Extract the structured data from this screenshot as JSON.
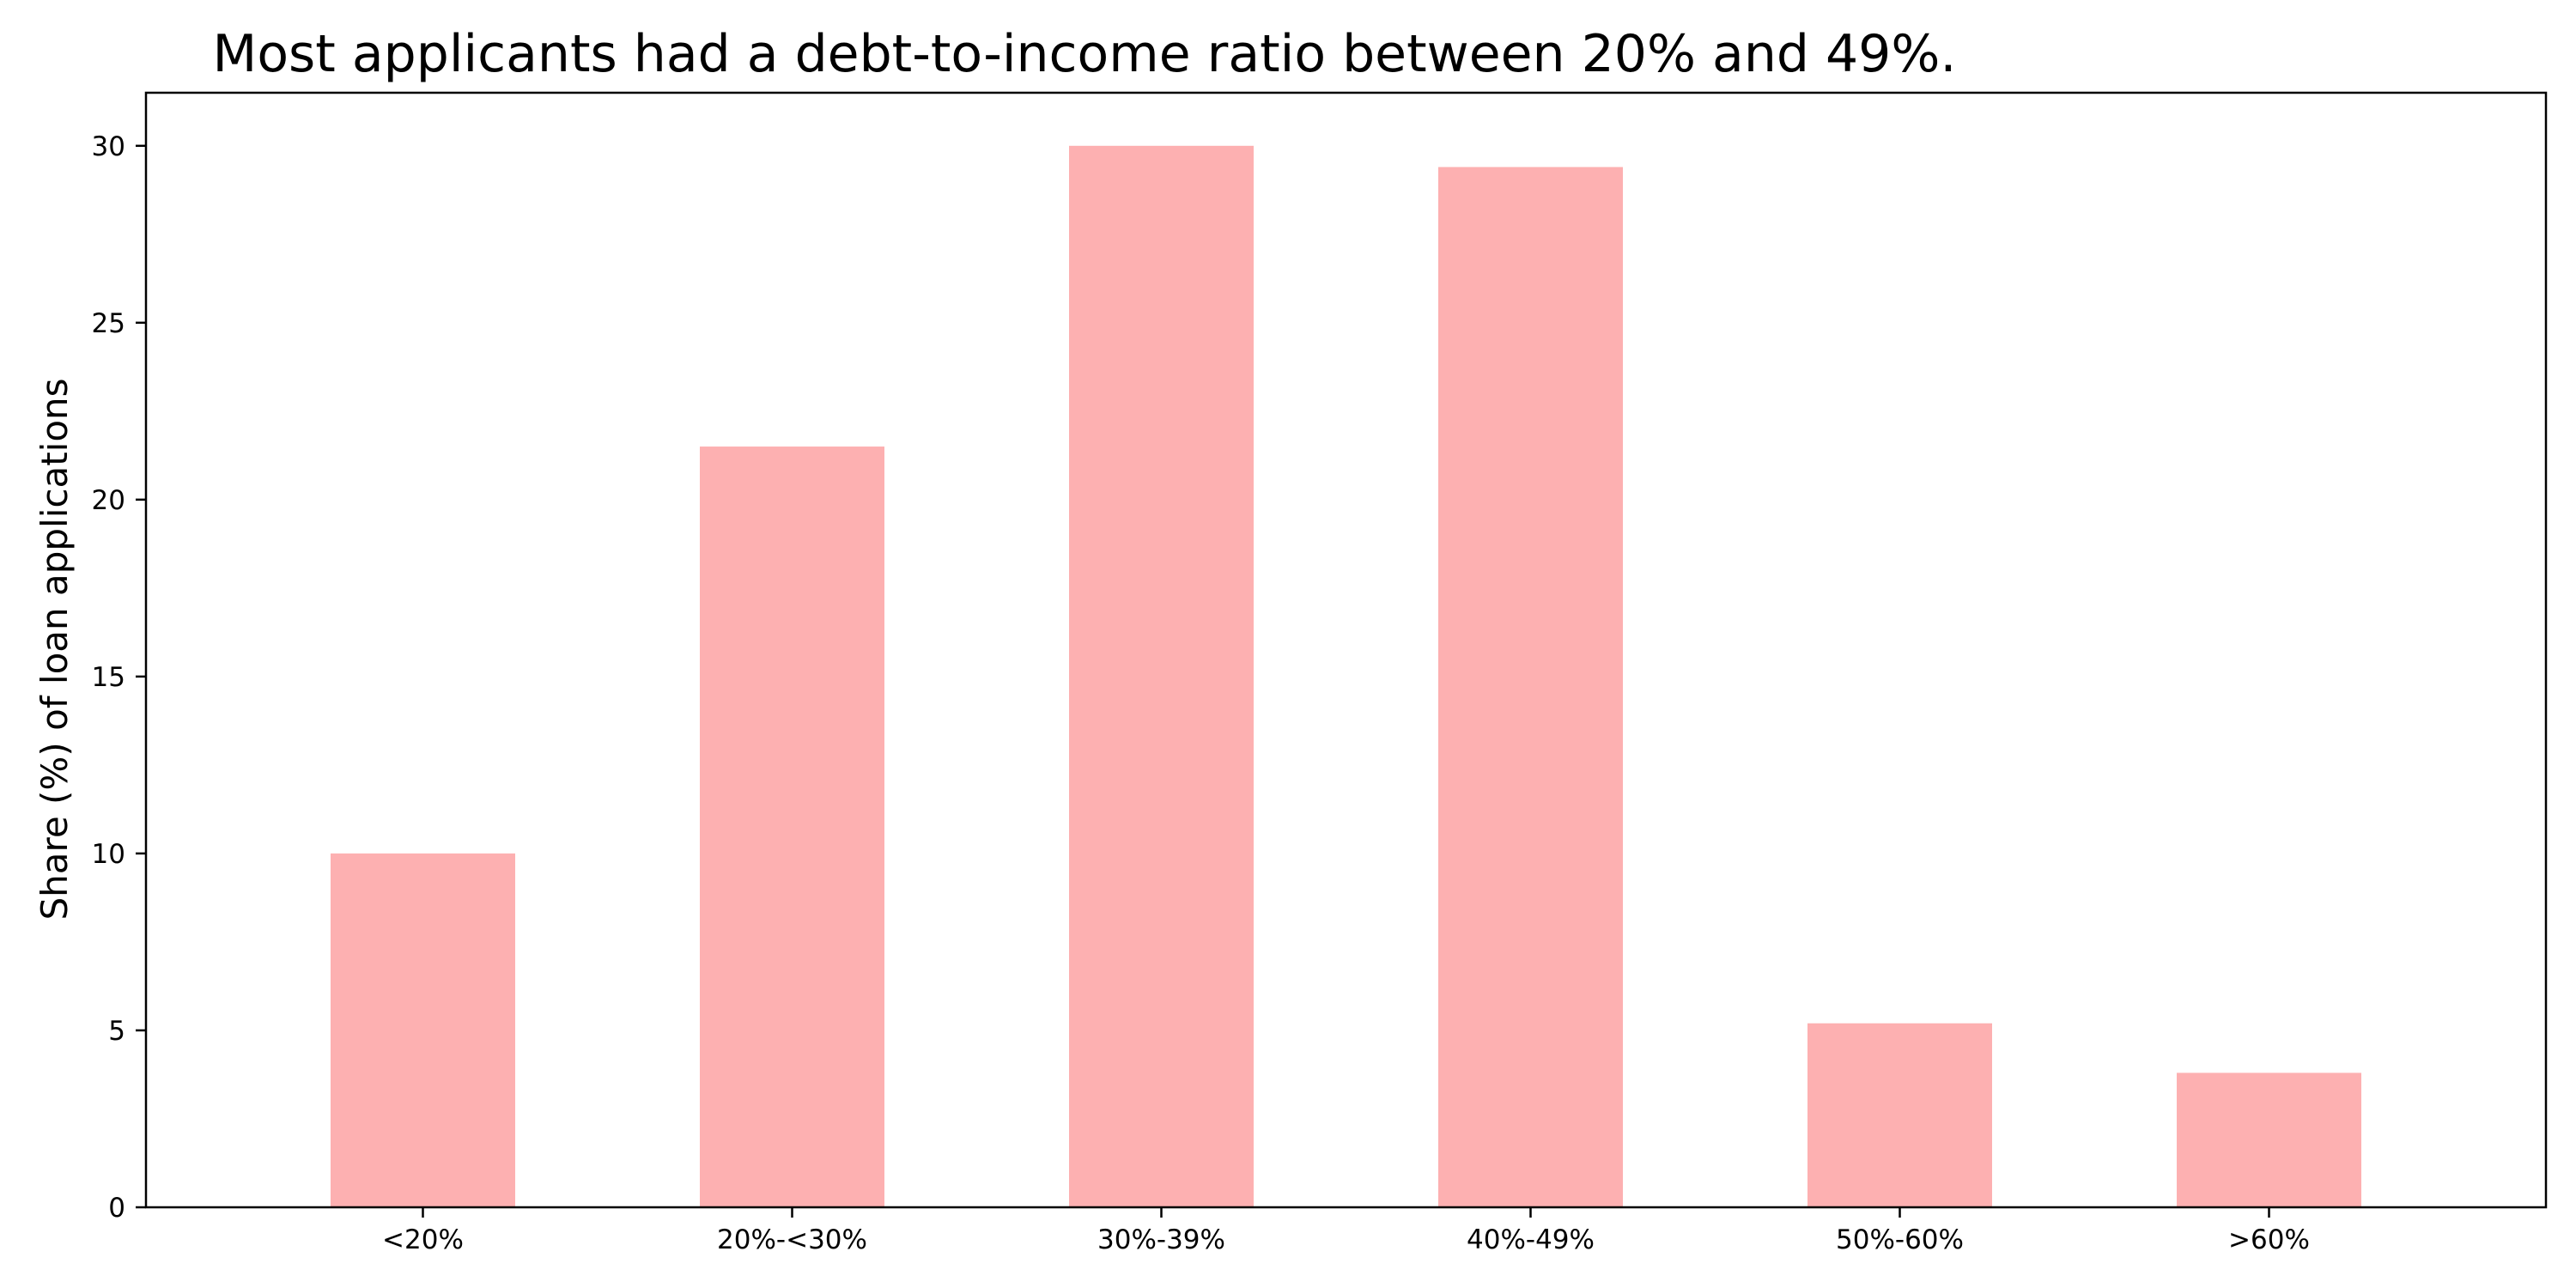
{
  "chart_data": {
    "type": "bar",
    "title": "Most applicants had a debt-to-income ratio between 20% and 49%.",
    "xlabel": "",
    "ylabel": "Share (%) of loan applications",
    "categories": [
      "<20%",
      "20%-<30%",
      "30%-39%",
      "40%-49%",
      "50%-60%",
      ">60%"
    ],
    "values": [
      10.0,
      21.5,
      30.0,
      29.4,
      5.2,
      3.8
    ],
    "ylim": [
      0,
      31.5
    ],
    "yticks": [
      0,
      5,
      10,
      15,
      20,
      25,
      30
    ],
    "grid": false,
    "legend": "none",
    "bar_color": "#fdb0b1",
    "axis_color": "#000000"
  }
}
